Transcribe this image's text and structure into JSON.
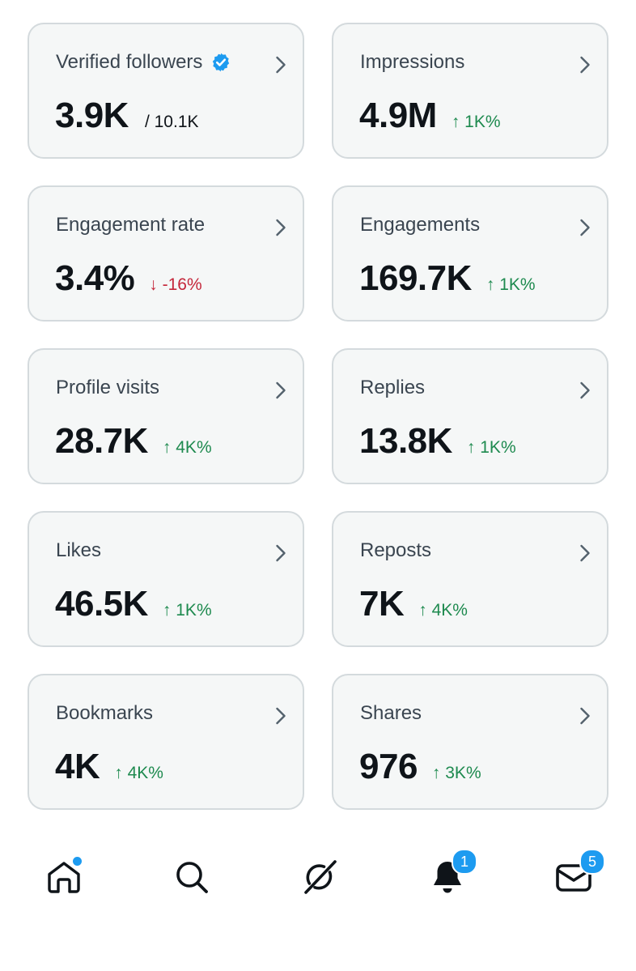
{
  "colors": {
    "card_bg": "#f5f7f7",
    "card_border": "#d4dadd",
    "up": "#1e8a4f",
    "down": "#c4263a",
    "accent": "#1d9bf0"
  },
  "cards": [
    {
      "label": "Verified followers",
      "value": "3.9K",
      "sub": "/ 10.1K",
      "verified_icon": "verified-badge-icon"
    },
    {
      "label": "Impressions",
      "value": "4.9M",
      "delta": "↑ 1K%",
      "direction": "up"
    },
    {
      "label": "Engagement rate",
      "value": "3.4%",
      "delta": "↓ -16%",
      "direction": "down"
    },
    {
      "label": "Engagements",
      "value": "169.7K",
      "delta": "↑ 1K%",
      "direction": "up"
    },
    {
      "label": "Profile visits",
      "value": "28.7K",
      "delta": "↑ 4K%",
      "direction": "up"
    },
    {
      "label": "Replies",
      "value": "13.8K",
      "delta": "↑ 1K%",
      "direction": "up"
    },
    {
      "label": "Likes",
      "value": "46.5K",
      "delta": "↑ 1K%",
      "direction": "up"
    },
    {
      "label": "Reposts",
      "value": "7K",
      "delta": "↑ 4K%",
      "direction": "up"
    },
    {
      "label": "Bookmarks",
      "value": "4K",
      "delta": "↑ 4K%",
      "direction": "up"
    },
    {
      "label": "Shares",
      "value": "976",
      "delta": "↑ 3K%",
      "direction": "up"
    }
  ],
  "nav": {
    "items": [
      {
        "icon": "home-icon",
        "has_dot": true
      },
      {
        "icon": "search-icon"
      },
      {
        "icon": "grok-icon"
      },
      {
        "icon": "bell-icon",
        "badge": "1"
      },
      {
        "icon": "mail-icon",
        "badge": "5"
      }
    ]
  }
}
